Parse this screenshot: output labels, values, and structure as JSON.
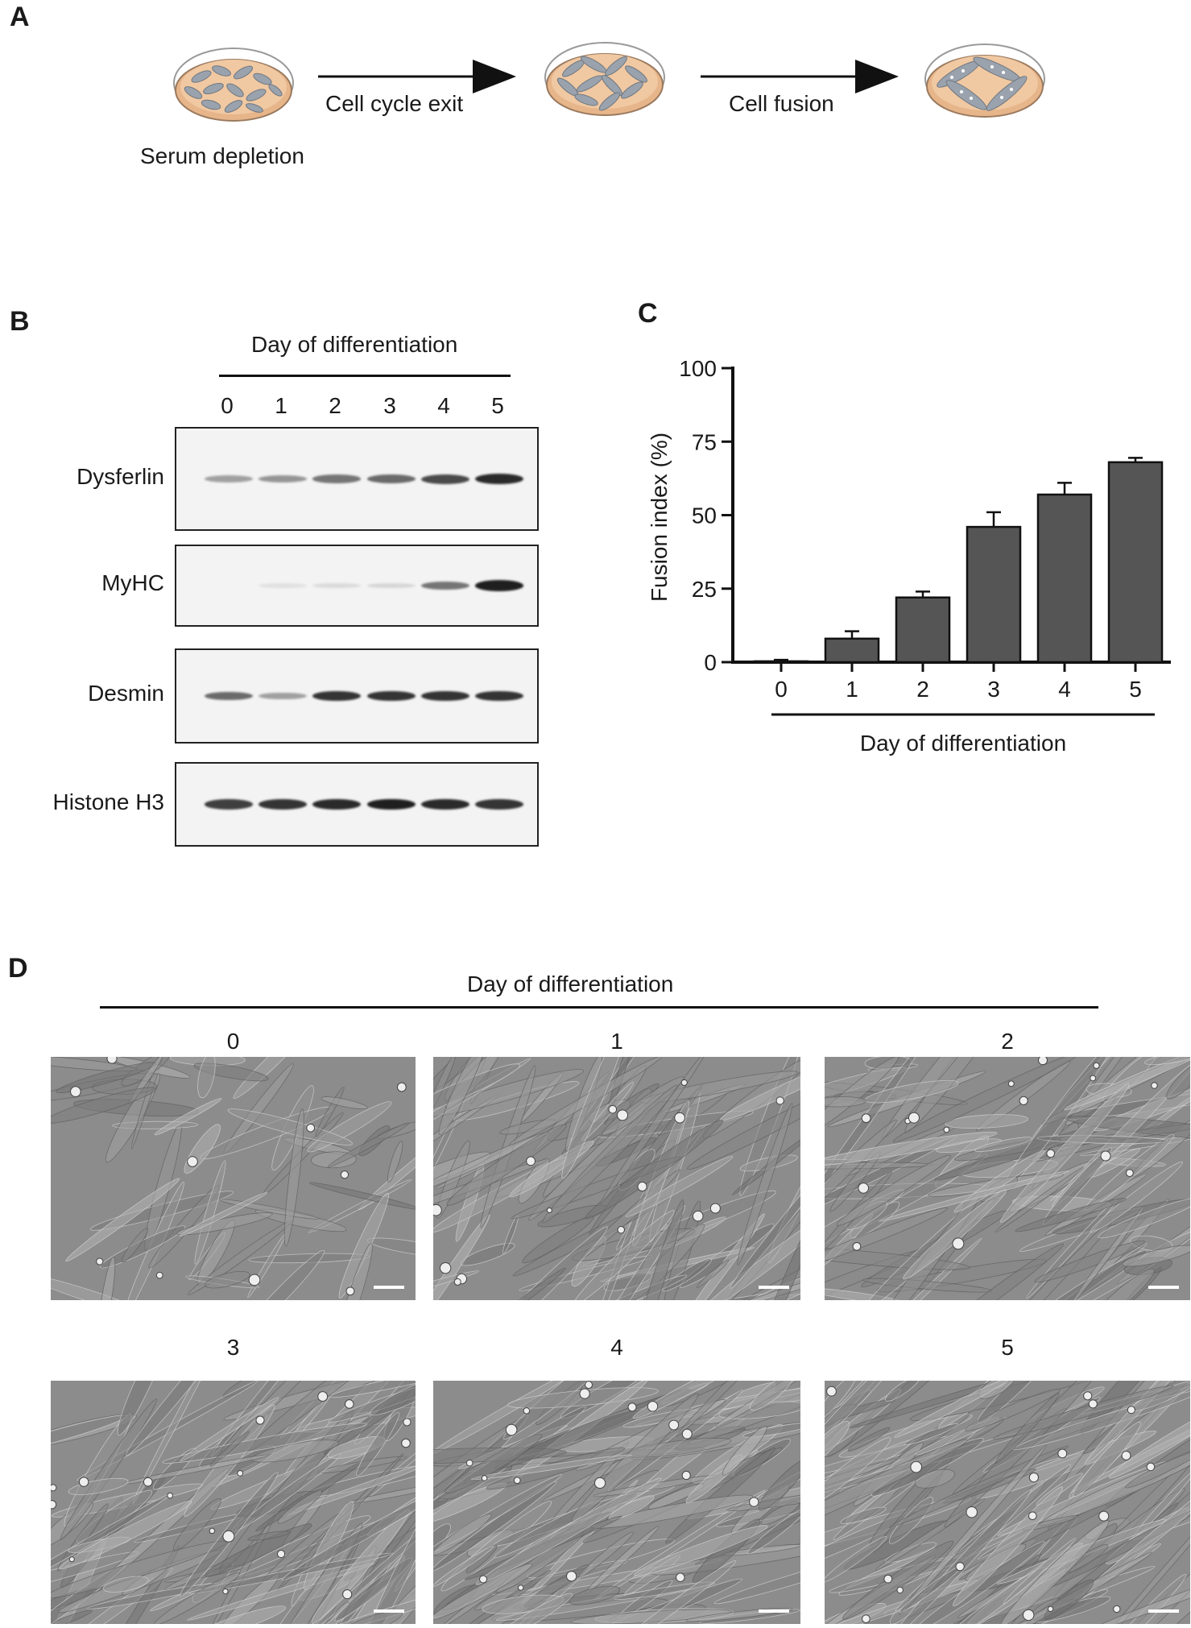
{
  "panel_a": {
    "letter": "A",
    "step1_label": "Serum depletion",
    "arrow1_label": "Cell cycle exit",
    "arrow2_label": "Cell fusion"
  },
  "panel_b": {
    "letter": "B",
    "header": "Day of differentiation",
    "lanes": [
      "0",
      "1",
      "2",
      "3",
      "4",
      "5"
    ],
    "blots": [
      {
        "protein": "Dysferlin",
        "intensity": [
          0.35,
          0.4,
          0.55,
          0.6,
          0.75,
          0.9
        ]
      },
      {
        "protein": "MyHC",
        "intensity": [
          0.0,
          0.05,
          0.08,
          0.1,
          0.55,
          0.95
        ]
      },
      {
        "protein": "Desmin",
        "intensity": [
          0.6,
          0.35,
          0.85,
          0.85,
          0.85,
          0.85
        ]
      },
      {
        "protein": "Histone H3",
        "intensity": [
          0.8,
          0.85,
          0.9,
          0.95,
          0.9,
          0.85
        ]
      }
    ]
  },
  "panel_c": {
    "letter": "C",
    "chart_data": {
      "type": "bar",
      "categories": [
        "0",
        "1",
        "2",
        "3",
        "4",
        "5"
      ],
      "values": [
        0.3,
        8,
        22,
        46,
        57,
        68
      ],
      "errors": [
        0.5,
        2.5,
        2,
        5,
        4,
        1.5
      ],
      "ylabel": "Fusion index (%)",
      "xlabel": "Day of differentiation",
      "ylim": [
        0,
        100
      ],
      "yticks": [
        "0",
        "25",
        "50",
        "75",
        "100"
      ],
      "bar_color": "#555555",
      "grid": false
    }
  },
  "panel_d": {
    "letter": "D",
    "header": "Day of differentiation",
    "images": [
      {
        "label": "0",
        "density": 0.3
      },
      {
        "label": "1",
        "density": 0.65
      },
      {
        "label": "2",
        "density": 0.7
      },
      {
        "label": "3",
        "density": 0.75
      },
      {
        "label": "4",
        "density": 0.85
      },
      {
        "label": "5",
        "density": 0.95
      }
    ]
  }
}
